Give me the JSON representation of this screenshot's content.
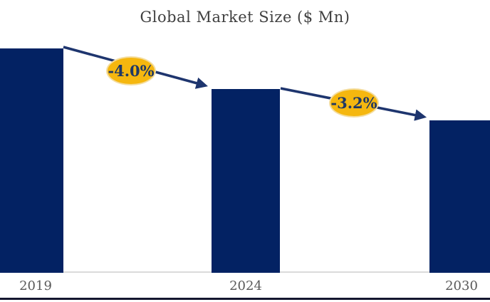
{
  "chart": {
    "title": "Global Market Size ($ Mn)"
  },
  "chart_data": {
    "type": "bar",
    "title": "Global Market Size ($ Mn)",
    "categories": [
      "2019",
      "2024",
      "2030"
    ],
    "values_relative": [
      100,
      82,
      68
    ],
    "values_note": "no value axis or data labels shown; bar heights relative, 2019 indexed to 100",
    "xlabel": "",
    "ylabel": "",
    "y_axis_shown": false,
    "grid": false,
    "legend": false,
    "growth_annotations": [
      {
        "from": "2019",
        "to": "2024",
        "label": "-4.0%"
      },
      {
        "from": "2024",
        "to": "2030",
        "label": "-3.2%"
      }
    ]
  },
  "colors": {
    "bar": "#032263",
    "arrow": "#1E356E",
    "bubble_fill": "#F5B70F",
    "bubble_border": "#F4DD9E",
    "bubble_text": "#1F3864",
    "title_text": "#3F3F3F",
    "axis_label_text": "#595959",
    "axis_line": "#DBDBDB",
    "bottom_rule": "#14162F"
  }
}
